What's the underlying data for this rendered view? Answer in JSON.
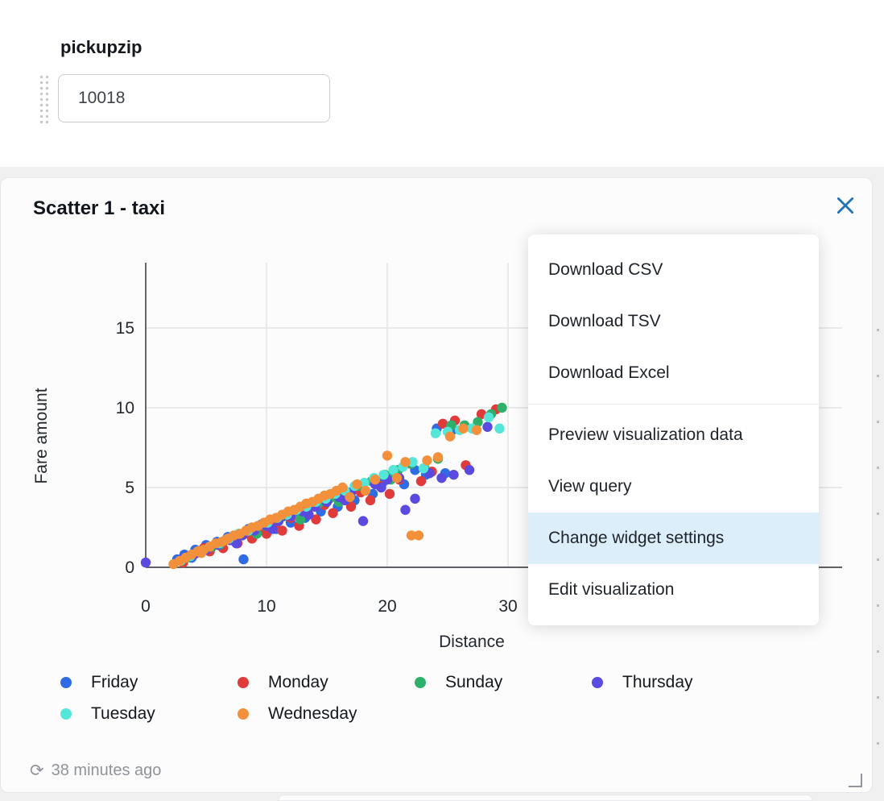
{
  "page": {
    "param_label": "pickupzip",
    "param_value": "10018"
  },
  "widget": {
    "title": "Scatter 1 - taxi",
    "footer": {
      "refresh_icon": "⟳",
      "last_refresh": "38 minutes ago"
    }
  },
  "colors": {
    "close_icon": "#2272B4",
    "menu_highlight": "#ddeefb"
  },
  "menu": {
    "items": [
      {
        "label": "Download CSV",
        "highlighted": false,
        "divider_after": false
      },
      {
        "label": "Download TSV",
        "highlighted": false,
        "divider_after": false
      },
      {
        "label": "Download Excel",
        "highlighted": false,
        "divider_after": true
      },
      {
        "label": "Preview visualization data",
        "highlighted": false,
        "divider_after": false
      },
      {
        "label": "View query",
        "highlighted": false,
        "divider_after": false
      },
      {
        "label": "Change widget settings",
        "highlighted": true,
        "divider_after": false
      },
      {
        "label": "Edit visualization",
        "highlighted": false,
        "divider_after": false
      }
    ]
  },
  "chart_data": {
    "type": "scatter",
    "title": "Scatter 1 - taxi",
    "xlabel": "Distance",
    "ylabel": "Fare amount",
    "xlim": [
      0,
      57
    ],
    "ylim": [
      0,
      19
    ],
    "x_ticks": [
      0,
      10,
      20,
      30
    ],
    "y_ticks": [
      0,
      5,
      10,
      15
    ],
    "grid": true,
    "legend_position": "bottom",
    "series": [
      {
        "name": "Friday",
        "color": "#2F6BE4",
        "points": [
          [
            2.6,
            0.5
          ],
          [
            3.2,
            0.8
          ],
          [
            3.8,
            0.6
          ],
          [
            4.1,
            1.1
          ],
          [
            4.6,
            1.0
          ],
          [
            5.0,
            1.4
          ],
          [
            5.4,
            1.2
          ],
          [
            5.9,
            1.6
          ],
          [
            6.3,
            1.3
          ],
          [
            6.8,
            1.9
          ],
          [
            7.2,
            1.7
          ],
          [
            7.7,
            2.1
          ],
          [
            8.1,
            0.5
          ],
          [
            8.5,
            2.4
          ],
          [
            9.0,
            2.2
          ],
          [
            9.6,
            2.7
          ],
          [
            10.2,
            2.9
          ],
          [
            10.8,
            2.4
          ],
          [
            11.4,
            3.2
          ],
          [
            12.0,
            2.8
          ],
          [
            12.6,
            3.5
          ],
          [
            13.2,
            3.1
          ],
          [
            13.9,
            3.9
          ],
          [
            14.5,
            3.5
          ],
          [
            15.2,
            4.3
          ],
          [
            15.9,
            3.8
          ],
          [
            16.6,
            4.6
          ],
          [
            17.3,
            4.2
          ],
          [
            18.0,
            5.0
          ],
          [
            18.8,
            4.6
          ],
          [
            19.6,
            5.3
          ],
          [
            20.5,
            5.7
          ],
          [
            21.4,
            5.2
          ],
          [
            22.3,
            6.1
          ],
          [
            23.2,
            5.8
          ],
          [
            24.1,
            8.7
          ],
          [
            24.8,
            5.9
          ],
          [
            25.4,
            8.6
          ]
        ]
      },
      {
        "name": "Monday",
        "color": "#E03B3B",
        "points": [
          [
            3.1,
            0.3
          ],
          [
            3.6,
            0.7
          ],
          [
            4.2,
            0.9
          ],
          [
            4.8,
            1.2
          ],
          [
            5.3,
            1.0
          ],
          [
            5.9,
            1.5
          ],
          [
            6.4,
            1.2
          ],
          [
            7.0,
            1.8
          ],
          [
            7.6,
            1.5
          ],
          [
            8.2,
            2.1
          ],
          [
            8.8,
            1.8
          ],
          [
            9.4,
            2.4
          ],
          [
            10.0,
            2.1
          ],
          [
            10.7,
            2.7
          ],
          [
            11.3,
            2.3
          ],
          [
            12.0,
            3.1
          ],
          [
            12.7,
            2.6
          ],
          [
            13.4,
            3.5
          ],
          [
            14.1,
            3.0
          ],
          [
            14.8,
            3.9
          ],
          [
            15.5,
            3.4
          ],
          [
            16.3,
            4.3
          ],
          [
            17.0,
            3.8
          ],
          [
            17.8,
            4.7
          ],
          [
            18.6,
            4.2
          ],
          [
            19.4,
            5.1
          ],
          [
            20.2,
            4.6
          ],
          [
            21.0,
            5.5
          ],
          [
            21.9,
            6.5
          ],
          [
            22.8,
            5.4
          ],
          [
            23.7,
            6.0
          ],
          [
            24.6,
            9.0
          ],
          [
            25.6,
            9.2
          ],
          [
            26.5,
            6.4
          ],
          [
            27.8,
            9.6
          ],
          [
            29.0,
            9.9
          ]
        ]
      },
      {
        "name": "Sunday",
        "color": "#2EB06A",
        "points": [
          [
            3.4,
            0.6
          ],
          [
            4.4,
            1.0
          ],
          [
            5.5,
            1.3
          ],
          [
            6.6,
            1.7
          ],
          [
            7.7,
            2.0
          ],
          [
            8.8,
            2.3
          ],
          [
            9.9,
            2.6
          ],
          [
            11.0,
            3.0
          ],
          [
            12.1,
            3.3
          ],
          [
            13.2,
            3.7
          ],
          [
            14.3,
            4.0
          ],
          [
            15.4,
            4.4
          ],
          [
            16.5,
            4.7
          ],
          [
            17.6,
            5.1
          ],
          [
            18.7,
            5.4
          ],
          [
            19.8,
            5.8
          ],
          [
            20.9,
            6.1
          ],
          [
            22.0,
            6.5
          ],
          [
            23.1,
            6.2
          ],
          [
            24.2,
            6.8
          ],
          [
            25.3,
            8.9
          ],
          [
            26.4,
            8.9
          ],
          [
            27.5,
            9.1
          ],
          [
            28.6,
            9.6
          ],
          [
            29.5,
            10.0
          ],
          [
            6.1,
            1.4
          ],
          [
            9.2,
            2.1
          ],
          [
            12.8,
            3.0
          ],
          [
            16.0,
            4.1
          ],
          [
            20.3,
            5.5
          ]
        ]
      },
      {
        "name": "Thursday",
        "color": "#5A4AE0",
        "points": [
          [
            0.0,
            0.3
          ],
          [
            3.0,
            0.5
          ],
          [
            4.0,
            0.8
          ],
          [
            5.0,
            1.1
          ],
          [
            6.0,
            1.4
          ],
          [
            7.0,
            1.7
          ],
          [
            8.0,
            2.0
          ],
          [
            9.0,
            2.3
          ],
          [
            10.0,
            2.6
          ],
          [
            11.0,
            2.9
          ],
          [
            12.0,
            3.2
          ],
          [
            13.0,
            3.5
          ],
          [
            14.0,
            3.8
          ],
          [
            15.0,
            4.1
          ],
          [
            16.0,
            4.4
          ],
          [
            17.0,
            4.7
          ],
          [
            18.0,
            2.9
          ],
          [
            19.0,
            5.2
          ],
          [
            20.0,
            5.5
          ],
          [
            21.5,
            3.6
          ],
          [
            22.3,
            4.3
          ],
          [
            23.5,
            5.9
          ],
          [
            24.5,
            5.6
          ],
          [
            25.5,
            5.8
          ],
          [
            26.8,
            6.1
          ],
          [
            7.5,
            1.5
          ],
          [
            10.5,
            2.4
          ],
          [
            13.5,
            3.3
          ],
          [
            16.5,
            4.2
          ],
          [
            19.5,
            5.0
          ],
          [
            21.0,
            5.6
          ],
          [
            28.3,
            8.8
          ]
        ]
      },
      {
        "name": "Tuesday",
        "color": "#54E6D8",
        "points": [
          [
            2.9,
            0.4
          ],
          [
            3.7,
            0.7
          ],
          [
            4.5,
            1.0
          ],
          [
            5.3,
            1.3
          ],
          [
            6.1,
            1.5
          ],
          [
            6.9,
            1.8
          ],
          [
            7.7,
            2.1
          ],
          [
            8.5,
            2.3
          ],
          [
            9.3,
            2.6
          ],
          [
            10.1,
            2.8
          ],
          [
            10.9,
            3.1
          ],
          [
            11.7,
            3.3
          ],
          [
            12.5,
            3.6
          ],
          [
            13.3,
            3.8
          ],
          [
            14.1,
            4.1
          ],
          [
            14.9,
            4.3
          ],
          [
            15.7,
            4.6
          ],
          [
            16.5,
            4.8
          ],
          [
            17.3,
            5.1
          ],
          [
            18.1,
            5.3
          ],
          [
            18.9,
            5.6
          ],
          [
            19.7,
            5.8
          ],
          [
            20.5,
            6.1
          ],
          [
            21.3,
            6.3
          ],
          [
            22.1,
            6.6
          ],
          [
            23.0,
            6.2
          ],
          [
            24.0,
            8.4
          ],
          [
            25.0,
            8.5
          ],
          [
            26.0,
            8.6
          ],
          [
            27.0,
            8.7
          ],
          [
            28.4,
            9.4
          ],
          [
            29.3,
            8.7
          ]
        ]
      },
      {
        "name": "Wednesday",
        "color": "#F2903C",
        "points": [
          [
            2.3,
            0.2
          ],
          [
            2.8,
            0.4
          ],
          [
            3.3,
            0.6
          ],
          [
            3.8,
            0.8
          ],
          [
            4.3,
            1.0
          ],
          [
            4.8,
            1.1
          ],
          [
            5.3,
            1.3
          ],
          [
            5.8,
            1.5
          ],
          [
            6.3,
            1.6
          ],
          [
            6.8,
            1.8
          ],
          [
            7.3,
            2.0
          ],
          [
            7.8,
            2.1
          ],
          [
            8.3,
            2.3
          ],
          [
            8.8,
            2.5
          ],
          [
            9.3,
            2.6
          ],
          [
            9.8,
            2.8
          ],
          [
            10.3,
            3.0
          ],
          [
            10.8,
            3.1
          ],
          [
            11.3,
            3.3
          ],
          [
            11.8,
            3.5
          ],
          [
            12.3,
            3.6
          ],
          [
            12.8,
            3.8
          ],
          [
            13.3,
            4.0
          ],
          [
            13.8,
            4.1
          ],
          [
            14.3,
            4.3
          ],
          [
            14.8,
            4.5
          ],
          [
            15.3,
            4.6
          ],
          [
            15.8,
            4.8
          ],
          [
            16.3,
            5.0
          ],
          [
            16.9,
            4.4
          ],
          [
            17.5,
            5.2
          ],
          [
            18.2,
            4.8
          ],
          [
            19.0,
            5.5
          ],
          [
            20.0,
            7.0
          ],
          [
            20.8,
            5.6
          ],
          [
            21.5,
            6.6
          ],
          [
            22.0,
            2.0
          ],
          [
            22.6,
            2.0
          ],
          [
            23.3,
            6.7
          ],
          [
            24.2,
            6.9
          ],
          [
            25.2,
            8.2
          ],
          [
            26.3,
            8.7
          ],
          [
            27.4,
            8.6
          ],
          [
            4.6,
            0.9
          ],
          [
            6.6,
            1.7
          ]
        ]
      }
    ]
  }
}
